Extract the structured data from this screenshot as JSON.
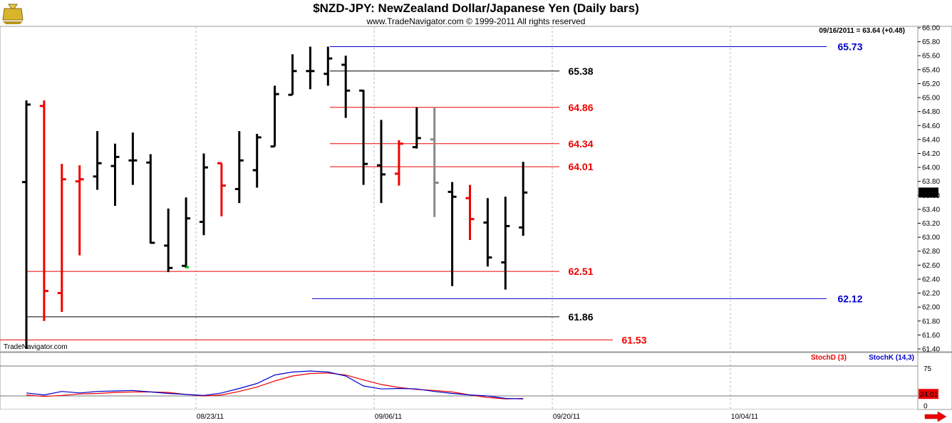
{
  "header": {
    "title": "$NZD-JPY:  NewZealand Dollar/Japanese Yen  (Daily bars)",
    "copyright": "www.TradeNavigator.com © 1999-2011 All rights reserved",
    "last_info": "09/16/2011 = 63.64 (+0.48)",
    "watermark": "TradeNavigator.com",
    "logo_icon": "moneybag-icon"
  },
  "colors": {
    "up": "#000000",
    "down": "#ee0000",
    "neutral": "#888888",
    "green": "#00cc00",
    "red_level": "#ee0000",
    "black_level": "#000000",
    "blue_level": "#0000cc",
    "stoch_d": "#ee0000",
    "stoch_k": "#0000cc"
  },
  "chart_data": [
    {
      "type": "ohlc",
      "title": "$NZD-JPY:  NewZealand Dollar/Japanese Yen  (Daily bars)",
      "ylim": [
        61.4,
        66.0
      ],
      "y_ticks": [
        "66.00",
        "65.80",
        "65.60",
        "65.40",
        "65.20",
        "65.00",
        "64.80",
        "64.60",
        "64.40",
        "64.20",
        "64.00",
        "63.80",
        "63.60",
        "63.40",
        "63.20",
        "63.00",
        "62.80",
        "62.60",
        "62.40",
        "62.20",
        "62.00",
        "61.80",
        "61.60",
        "61.40"
      ],
      "x_tick_labels": [
        "08/23/11",
        "09/06/11",
        "09/20/11",
        "10/04/11"
      ],
      "last_price_label": "63.64",
      "bars": [
        {
          "o": 63.79,
          "h": 64.96,
          "l": 61.4,
          "c": 64.9,
          "col": "up"
        },
        {
          "o": 64.88,
          "h": 64.96,
          "l": 61.8,
          "c": 62.23,
          "col": "down"
        },
        {
          "o": 62.2,
          "h": 64.05,
          "l": 61.93,
          "c": 63.83,
          "col": "down"
        },
        {
          "o": 63.8,
          "h": 64.03,
          "l": 62.74,
          "c": 63.83,
          "col": "down"
        },
        {
          "o": 63.87,
          "h": 64.52,
          "l": 63.68,
          "c": 64.06,
          "col": "up"
        },
        {
          "o": 64.02,
          "h": 64.34,
          "l": 63.45,
          "c": 64.15,
          "col": "up"
        },
        {
          "o": 64.1,
          "h": 64.5,
          "l": 63.75,
          "c": 64.1,
          "col": "up"
        },
        {
          "o": 64.07,
          "h": 64.19,
          "l": 62.91,
          "c": 62.92,
          "col": "up"
        },
        {
          "o": 62.88,
          "h": 63.41,
          "l": 62.5,
          "c": 62.56,
          "col": "up"
        },
        {
          "o": 62.59,
          "h": 63.57,
          "l": 62.56,
          "c": 63.27,
          "col": "up"
        },
        {
          "o": 63.22,
          "h": 64.2,
          "l": 63.03,
          "c": 64.0,
          "col": "up"
        },
        {
          "o": 64.06,
          "h": 64.06,
          "l": 63.3,
          "c": 63.74,
          "col": "down"
        },
        {
          "o": 63.69,
          "h": 64.52,
          "l": 63.49,
          "c": 64.1,
          "col": "up"
        },
        {
          "o": 63.96,
          "h": 64.48,
          "l": 63.71,
          "c": 64.43,
          "col": "up"
        },
        {
          "o": 64.3,
          "h": 65.17,
          "l": 64.3,
          "c": 65.05,
          "col": "up"
        },
        {
          "o": 65.04,
          "h": 65.62,
          "l": 65.04,
          "c": 65.38,
          "col": "up"
        },
        {
          "o": 65.38,
          "h": 65.73,
          "l": 65.12,
          "c": 65.38,
          "col": "up"
        },
        {
          "o": 65.34,
          "h": 65.73,
          "l": 65.17,
          "c": 65.56,
          "col": "up"
        },
        {
          "o": 65.47,
          "h": 65.6,
          "l": 64.71,
          "c": 65.1,
          "col": "up"
        },
        {
          "o": 65.1,
          "h": 65.11,
          "l": 63.75,
          "c": 64.05,
          "col": "up"
        },
        {
          "o": 64.03,
          "h": 64.68,
          "l": 63.49,
          "c": 63.9,
          "col": "up"
        },
        {
          "o": 63.91,
          "h": 64.39,
          "l": 63.74,
          "c": 64.34,
          "col": "down"
        },
        {
          "o": 64.29,
          "h": 64.86,
          "l": 64.27,
          "c": 64.42,
          "col": "up"
        },
        {
          "o": 64.4,
          "h": 64.86,
          "l": 63.29,
          "c": 63.78,
          "col": "neutral"
        },
        {
          "o": 63.65,
          "h": 63.79,
          "l": 62.3,
          "c": 63.58,
          "col": "up"
        },
        {
          "o": 63.56,
          "h": 63.75,
          "l": 62.96,
          "c": 63.26,
          "col": "down"
        },
        {
          "o": 63.21,
          "h": 63.56,
          "l": 62.58,
          "c": 62.71,
          "col": "up"
        },
        {
          "o": 62.64,
          "h": 63.58,
          "l": 62.25,
          "c": 63.16,
          "col": "up"
        },
        {
          "o": 63.14,
          "h": 64.08,
          "l": 63.02,
          "c": 63.64,
          "col": "up"
        }
      ],
      "levels": [
        {
          "value": 65.73,
          "label": "65.73",
          "color": "blue"
        },
        {
          "value": 65.38,
          "label": "65.38",
          "color": "black"
        },
        {
          "value": 64.86,
          "label": "64.86",
          "color": "red"
        },
        {
          "value": 64.34,
          "label": "64.34",
          "color": "red"
        },
        {
          "value": 64.01,
          "label": "64.01",
          "color": "red"
        },
        {
          "value": 62.51,
          "label": "62.51",
          "color": "red"
        },
        {
          "value": 62.12,
          "label": "62.12",
          "color": "blue"
        },
        {
          "value": 61.86,
          "label": "61.86",
          "color": "black"
        },
        {
          "value": 61.53,
          "label": "61.53",
          "color": "red"
        }
      ]
    },
    {
      "type": "line",
      "ylim": [
        0,
        100
      ],
      "y_ticks": [
        "75",
        "0"
      ],
      "ref_lines": [
        80,
        20
      ],
      "last_value_label": "24.01",
      "series": [
        {
          "name": "StochD (3)",
          "color": "stoch_d",
          "values": [
            22,
            19,
            21,
            24,
            25,
            27,
            28,
            28,
            27,
            23,
            20,
            22,
            29,
            38,
            50,
            60,
            65,
            66,
            62,
            52,
            43,
            37,
            33,
            31,
            28,
            22,
            17,
            14,
            15
          ]
        },
        {
          "name": "StochK (14,3)",
          "color": "stoch_k",
          "values": [
            26,
            22,
            29,
            26,
            29,
            30,
            31,
            28,
            25,
            23,
            21,
            26,
            35,
            45,
            62,
            68,
            70,
            68,
            60,
            40,
            34,
            35,
            34,
            29,
            25,
            22,
            20,
            15,
            14
          ]
        }
      ]
    }
  ]
}
